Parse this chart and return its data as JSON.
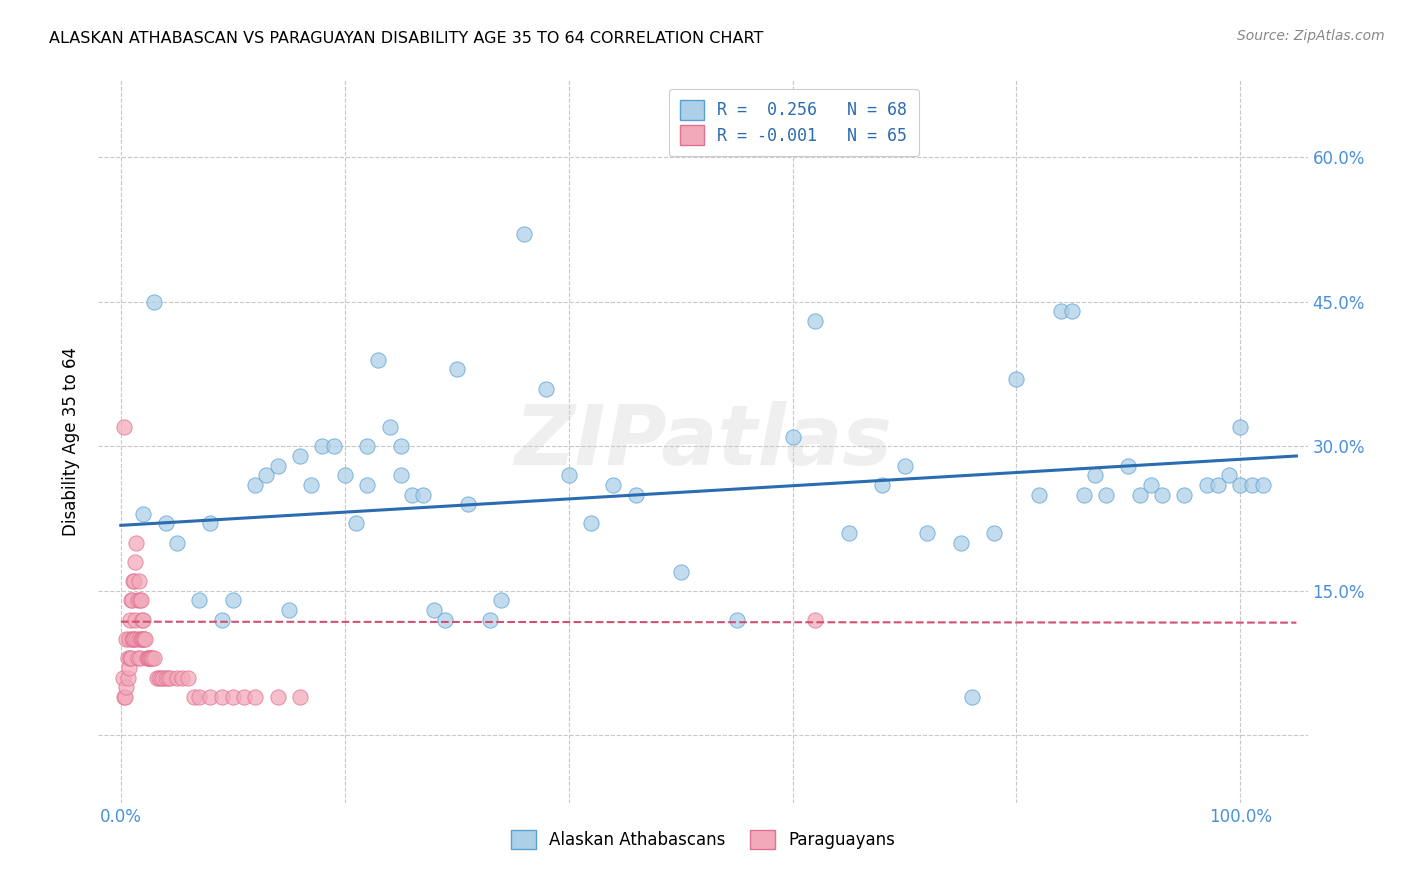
{
  "title": "ALASKAN ATHABASCAN VS PARAGUAYAN DISABILITY AGE 35 TO 64 CORRELATION CHART",
  "source": "Source: ZipAtlas.com",
  "ylabel": "Disability Age 35 to 64",
  "x_ticks": [
    0.0,
    0.2,
    0.4,
    0.6,
    0.8,
    1.0
  ],
  "y_ticks": [
    0.0,
    0.15,
    0.3,
    0.45,
    0.6
  ],
  "right_y_tick_labels": [
    "",
    "15.0%",
    "30.0%",
    "45.0%",
    "60.0%"
  ],
  "xlim": [
    -0.02,
    1.06
  ],
  "ylim": [
    -0.07,
    0.68
  ],
  "blue_color": "#AECFE8",
  "pink_color": "#F2AABB",
  "blue_edge_color": "#5A9FD4",
  "pink_edge_color": "#E07090",
  "blue_line_color": "#2B6CB0",
  "pink_line_color": "#D05070",
  "grid_color": "#C8C8C8",
  "watermark": "ZIPatlas",
  "label_color": "#4A90D9",
  "legend_R_blue": "0.256",
  "legend_N_blue": "68",
  "legend_R_pink": "-0.001",
  "legend_N_pink": "65",
  "blue_scatter_x": [
    0.02,
    0.03,
    0.04,
    0.05,
    0.07,
    0.08,
    0.09,
    0.1,
    0.12,
    0.13,
    0.14,
    0.15,
    0.16,
    0.17,
    0.18,
    0.19,
    0.2,
    0.21,
    0.22,
    0.22,
    0.23,
    0.24,
    0.25,
    0.25,
    0.26,
    0.27,
    0.28,
    0.29,
    0.3,
    0.31,
    0.33,
    0.34,
    0.36,
    0.38,
    0.4,
    0.42,
    0.44,
    0.46,
    0.5,
    0.55,
    0.6,
    0.62,
    0.65,
    0.68,
    0.7,
    0.72,
    0.75,
    0.76,
    0.78,
    0.8,
    0.82,
    0.84,
    0.85,
    0.86,
    0.87,
    0.88,
    0.9,
    0.91,
    0.92,
    0.93,
    0.95,
    0.97,
    0.98,
    0.99,
    1.0,
    1.0,
    1.01,
    1.02
  ],
  "blue_scatter_y": [
    0.23,
    0.45,
    0.22,
    0.2,
    0.14,
    0.22,
    0.12,
    0.14,
    0.26,
    0.27,
    0.28,
    0.13,
    0.29,
    0.26,
    0.3,
    0.3,
    0.27,
    0.22,
    0.3,
    0.26,
    0.39,
    0.32,
    0.27,
    0.3,
    0.25,
    0.25,
    0.13,
    0.12,
    0.38,
    0.24,
    0.12,
    0.14,
    0.52,
    0.36,
    0.27,
    0.22,
    0.26,
    0.25,
    0.17,
    0.12,
    0.31,
    0.43,
    0.21,
    0.26,
    0.28,
    0.21,
    0.2,
    0.04,
    0.21,
    0.37,
    0.25,
    0.44,
    0.44,
    0.25,
    0.27,
    0.25,
    0.28,
    0.25,
    0.26,
    0.25,
    0.25,
    0.26,
    0.26,
    0.27,
    0.32,
    0.26,
    0.26,
    0.26
  ],
  "pink_scatter_x": [
    0.002,
    0.003,
    0.004,
    0.005,
    0.005,
    0.006,
    0.006,
    0.007,
    0.007,
    0.008,
    0.008,
    0.009,
    0.009,
    0.01,
    0.01,
    0.011,
    0.011,
    0.012,
    0.012,
    0.013,
    0.013,
    0.014,
    0.014,
    0.015,
    0.015,
    0.016,
    0.016,
    0.017,
    0.017,
    0.018,
    0.018,
    0.019,
    0.019,
    0.02,
    0.02,
    0.021,
    0.022,
    0.023,
    0.024,
    0.025,
    0.026,
    0.027,
    0.028,
    0.03,
    0.032,
    0.034,
    0.036,
    0.038,
    0.04,
    0.042,
    0.044,
    0.05,
    0.055,
    0.06,
    0.065,
    0.07,
    0.08,
    0.09,
    0.1,
    0.11,
    0.12,
    0.14,
    0.16,
    0.003,
    0.62
  ],
  "pink_scatter_y": [
    0.06,
    0.04,
    0.04,
    0.05,
    0.1,
    0.06,
    0.08,
    0.07,
    0.1,
    0.08,
    0.12,
    0.08,
    0.14,
    0.1,
    0.14,
    0.1,
    0.16,
    0.1,
    0.16,
    0.12,
    0.18,
    0.1,
    0.2,
    0.08,
    0.14,
    0.1,
    0.16,
    0.08,
    0.14,
    0.1,
    0.14,
    0.1,
    0.12,
    0.1,
    0.12,
    0.1,
    0.1,
    0.08,
    0.08,
    0.08,
    0.08,
    0.08,
    0.08,
    0.08,
    0.06,
    0.06,
    0.06,
    0.06,
    0.06,
    0.06,
    0.06,
    0.06,
    0.06,
    0.06,
    0.04,
    0.04,
    0.04,
    0.04,
    0.04,
    0.04,
    0.04,
    0.04,
    0.04,
    0.32,
    0.12
  ],
  "blue_trend_x0": 0.0,
  "blue_trend_x1": 1.05,
  "blue_trend_y0": 0.218,
  "blue_trend_y1": 0.29,
  "pink_trend_y0": 0.118,
  "pink_trend_y1": 0.117
}
